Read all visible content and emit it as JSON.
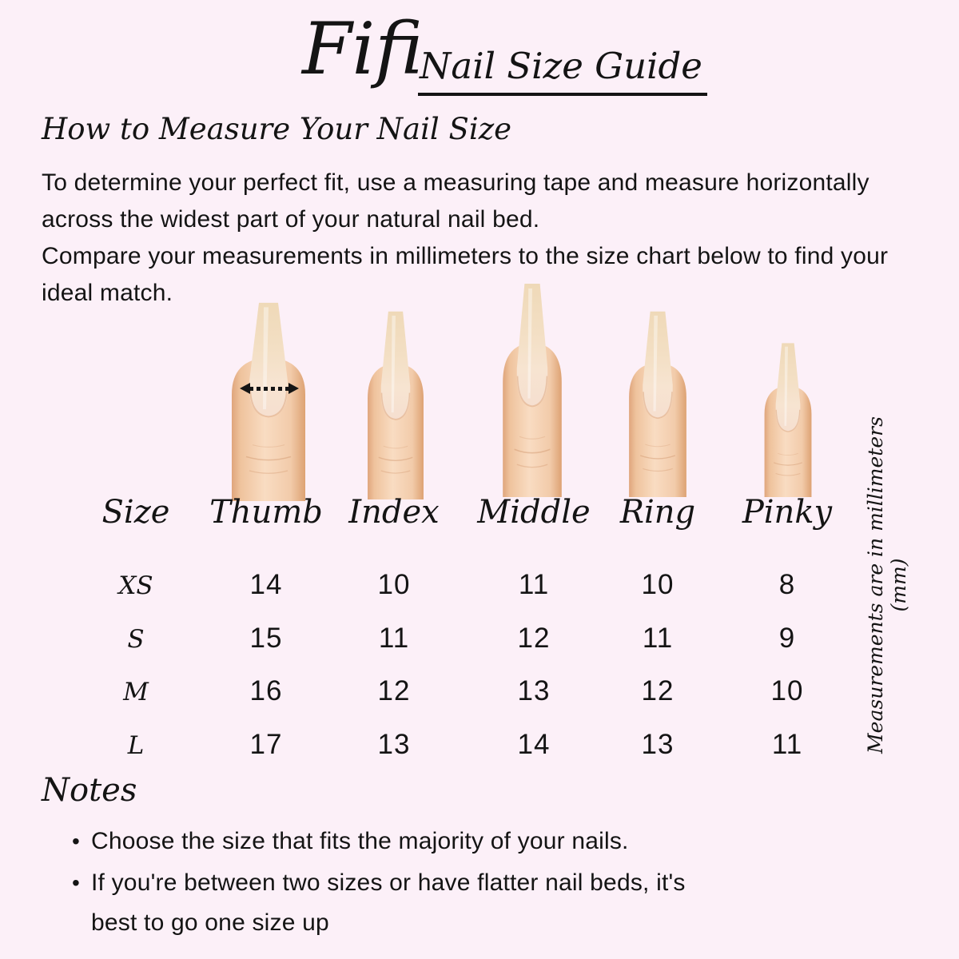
{
  "page": {
    "background_color": "#fcf0f8",
    "ink_color": "#141414"
  },
  "header": {
    "brand": "Fifi",
    "title": "Nail Size Guide"
  },
  "how_to": {
    "heading": "How to Measure Your Nail Size",
    "paragraphs": [
      "To determine your perfect fit, use a measuring tape and measure horizontally across the widest part of your natural nail bed.",
      "Compare your measurements in millimeters to the size chart below to find your ideal match."
    ]
  },
  "size_chart": {
    "columns": [
      "Size",
      "Thumb",
      "Index",
      "Middle",
      "Ring",
      "Pinky"
    ],
    "rows": [
      {
        "size": "XS",
        "values": [
          14,
          10,
          11,
          10,
          8
        ]
      },
      {
        "size": "S",
        "values": [
          15,
          11,
          12,
          11,
          9
        ]
      },
      {
        "size": "M",
        "values": [
          16,
          12,
          13,
          12,
          10
        ]
      },
      {
        "size": "L",
        "values": [
          17,
          13,
          14,
          13,
          11
        ]
      }
    ],
    "unit_note": "Measurements are in millimeters (mm)"
  },
  "notes": {
    "heading": "Notes",
    "items": [
      "Choose the size that fits the majority of your nails.",
      "If you're between two sizes or have flatter nail beds, it's best to go one size up"
    ]
  },
  "icons": {
    "measure_arrow": "dotted-double-headed-arrow"
  },
  "colors": {
    "skin_edge": "#dfa57c",
    "skin_mid": "#efc39d",
    "skin_highlight": "#f9dcc2",
    "skin_mid2": "#f2cbaa",
    "skin_edge2": "#dda273",
    "crease": "#d49c74",
    "cuticle": "#dfa981",
    "nail_tip": "#efd9b8",
    "nail_mid": "#f3dfc4",
    "nail_bed": "#f7e4d1",
    "nail_bed2": "#f6dfd0"
  }
}
